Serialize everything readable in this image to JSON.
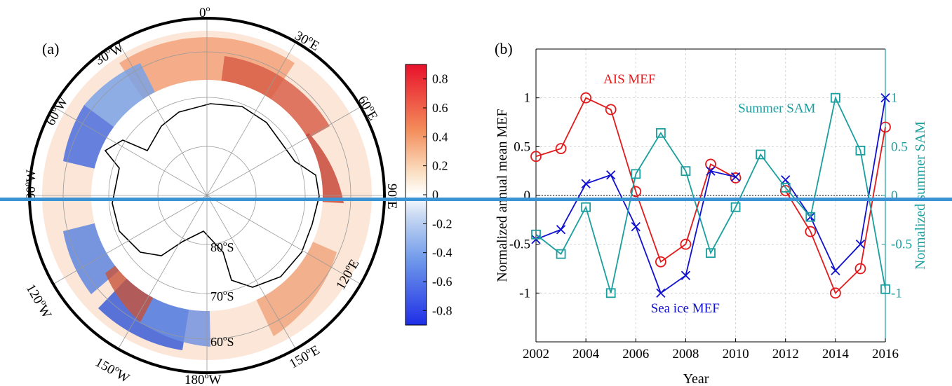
{
  "panel_a": {
    "label": "(a)",
    "lon_labels": [
      {
        "deg": "0",
        "sup": "o",
        "suf": ""
      },
      {
        "deg": "30",
        "sup": "o",
        "suf": "E"
      },
      {
        "deg": "60",
        "sup": "o",
        "suf": "E"
      },
      {
        "deg": "90",
        "sup": "o",
        "suf": "E"
      },
      {
        "deg": "120",
        "sup": "o",
        "suf": "E"
      },
      {
        "deg": "150",
        "sup": "o",
        "suf": "E"
      },
      {
        "deg": "180",
        "sup": "o",
        "suf": "W"
      },
      {
        "deg": "150",
        "sup": "o",
        "suf": "W"
      },
      {
        "deg": "120",
        "sup": "o",
        "suf": "W"
      },
      {
        "deg": "90",
        "sup": "o",
        "suf": "W"
      },
      {
        "deg": "60",
        "sup": "o",
        "suf": "W"
      },
      {
        "deg": "30",
        "sup": "o",
        "suf": "W"
      }
    ],
    "lat_labels": [
      {
        "deg": "80",
        "sup": "o",
        "suf": "S"
      },
      {
        "deg": "70",
        "sup": "o",
        "suf": "S"
      },
      {
        "deg": "60",
        "sup": "o",
        "suf": "S"
      }
    ],
    "colorbar": {
      "ticks": [
        "0.8",
        "0.6",
        "0.4",
        "0.2",
        "0",
        "-0.2",
        "-0.4",
        "-0.6",
        "-0.8"
      ],
      "range": [
        -0.9,
        0.9
      ],
      "colors": {
        "high": "#e8112b",
        "mid": "#ffffff",
        "low": "#1f2ee6"
      }
    }
  },
  "chart_data": {
    "type": "line",
    "label": "(b)",
    "title": "",
    "xlabel": "Year",
    "ylabel": "Normalized annual mean MEF",
    "y2label": "Normalized summer SAM",
    "x": [
      2002,
      2003,
      2004,
      2005,
      2006,
      2007,
      2008,
      2009,
      2010,
      2011,
      2012,
      2013,
      2014,
      2015,
      2016
    ],
    "xticks": [
      "2002",
      "2004",
      "2006",
      "2008",
      "2010",
      "2012",
      "2014",
      "2016"
    ],
    "xlim": [
      2002,
      2016
    ],
    "ylim": [
      -1.5,
      1.5
    ],
    "yticks": [
      "1",
      "0.5",
      "0",
      "-0.5",
      "-1"
    ],
    "y2lim": [
      -1.5,
      1.5
    ],
    "y2ticks": [
      "1",
      "0.5",
      "0",
      "-0.5",
      "-1"
    ],
    "grid": true,
    "series": [
      {
        "name": "AIS MEF",
        "color": "#e31a1c",
        "marker": "circle",
        "axis": "left",
        "values": [
          0.4,
          0.48,
          1.0,
          0.88,
          0.04,
          -0.68,
          -0.5,
          0.32,
          0.18,
          null,
          0.05,
          -0.37,
          -1.0,
          -0.75,
          0.7
        ]
      },
      {
        "name": "Sea ice MEF",
        "color": "#1010d0",
        "marker": "x",
        "axis": "left",
        "values": [
          -0.45,
          -0.35,
          0.12,
          0.21,
          -0.32,
          -1.0,
          -0.82,
          0.25,
          0.19,
          null,
          0.16,
          -0.22,
          -0.77,
          -0.5,
          1.0
        ]
      },
      {
        "name": "Summer SAM",
        "color": "#1a9e9e",
        "marker": "square",
        "axis": "right",
        "values": [
          -0.4,
          -0.6,
          -0.12,
          -1.0,
          0.22,
          0.64,
          0.25,
          -0.59,
          -0.12,
          0.42,
          0.08,
          -0.22,
          1.0,
          0.46,
          -0.96
        ]
      }
    ],
    "annotations": [
      {
        "text": "AIS MEF",
        "color": "#e31a1c",
        "x": 2004.7,
        "y": 1.15
      },
      {
        "text": "Summer SAM",
        "color": "#1a9e9e",
        "x": 2010.1,
        "y": 0.85
      },
      {
        "text": "Sea ice MEF",
        "color": "#1010d0",
        "x": 2006.6,
        "y": -1.2
      }
    ]
  }
}
